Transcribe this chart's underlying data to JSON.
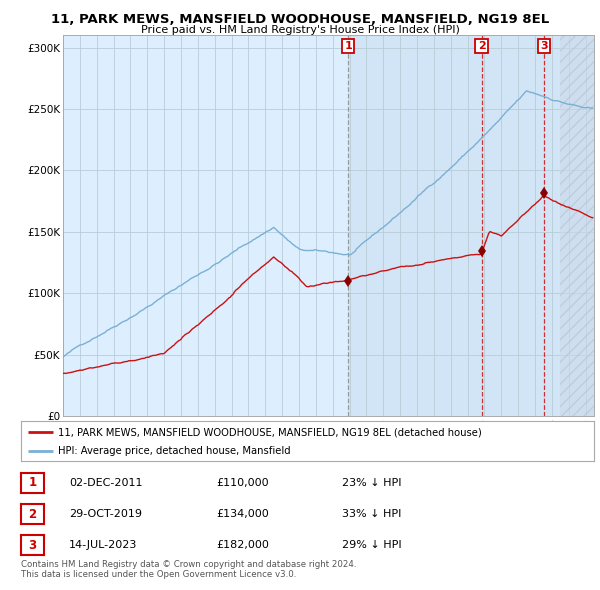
{
  "title": "11, PARK MEWS, MANSFIELD WOODHOUSE, MANSFIELD, NG19 8EL",
  "subtitle": "Price paid vs. HM Land Registry's House Price Index (HPI)",
  "ylim": [
    0,
    310000
  ],
  "xlim_start": 1995.0,
  "xlim_end": 2026.5,
  "yticks": [
    0,
    50000,
    100000,
    150000,
    200000,
    250000,
    300000
  ],
  "ytick_labels": [
    "£0",
    "£50K",
    "£100K",
    "£150K",
    "£200K",
    "£250K",
    "£300K"
  ],
  "xticks": [
    1995,
    1996,
    1997,
    1998,
    1999,
    2000,
    2001,
    2002,
    2003,
    2004,
    2005,
    2006,
    2007,
    2008,
    2009,
    2010,
    2011,
    2012,
    2013,
    2014,
    2015,
    2016,
    2017,
    2018,
    2019,
    2020,
    2021,
    2022,
    2023,
    2024,
    2025,
    2026
  ],
  "hpi_color": "#7ab0d4",
  "price_color": "#cc1111",
  "background_color": "#ffffff",
  "grid_color": "#cccccc",
  "sale1_date": 2011.92,
  "sale1_price": 110000,
  "sale2_date": 2019.83,
  "sale2_price": 134000,
  "sale3_date": 2023.54,
  "sale3_price": 182000,
  "legend_label_price": "11, PARK MEWS, MANSFIELD WOODHOUSE, MANSFIELD, NG19 8EL (detached house)",
  "legend_label_hpi": "HPI: Average price, detached house, Mansfield",
  "table_rows": [
    {
      "num": "1",
      "date": "02-DEC-2011",
      "price": "£110,000",
      "hpi": "23% ↓ HPI"
    },
    {
      "num": "2",
      "date": "29-OCT-2019",
      "price": "£134,000",
      "hpi": "33% ↓ HPI"
    },
    {
      "num": "3",
      "date": "14-JUL-2023",
      "price": "£182,000",
      "hpi": "29% ↓ HPI"
    }
  ],
  "footer": "Contains HM Land Registry data © Crown copyright and database right 2024.\nThis data is licensed under the Open Government Licence v3.0."
}
